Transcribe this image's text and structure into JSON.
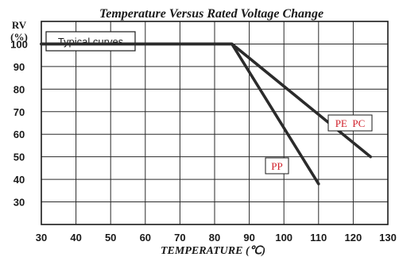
{
  "chart_data": {
    "type": "line",
    "title": "Temperature Versus Rated Voltage Change",
    "xlabel": "TEMPERATURE (℃)",
    "ylabel": "RV (%)",
    "ylabel_lines": [
      "RV",
      "(%)"
    ],
    "xlim": [
      30,
      130
    ],
    "ylim": [
      20,
      110
    ],
    "x_ticks": [
      30,
      40,
      50,
      60,
      70,
      80,
      90,
      100,
      110,
      120,
      130
    ],
    "y_ticks": [
      30,
      40,
      50,
      60,
      70,
      80,
      90,
      100
    ],
    "grid": true,
    "annotation": "Typical curves",
    "series": [
      {
        "name": "PE  PC",
        "x": [
          30,
          85,
          125
        ],
        "y": [
          100,
          100,
          50
        ]
      },
      {
        "name": "PP",
        "x": [
          30,
          85,
          110
        ],
        "y": [
          100,
          100,
          38
        ]
      }
    ],
    "series_label_color": "#d0202a",
    "line_color": "#2b2b2b"
  }
}
